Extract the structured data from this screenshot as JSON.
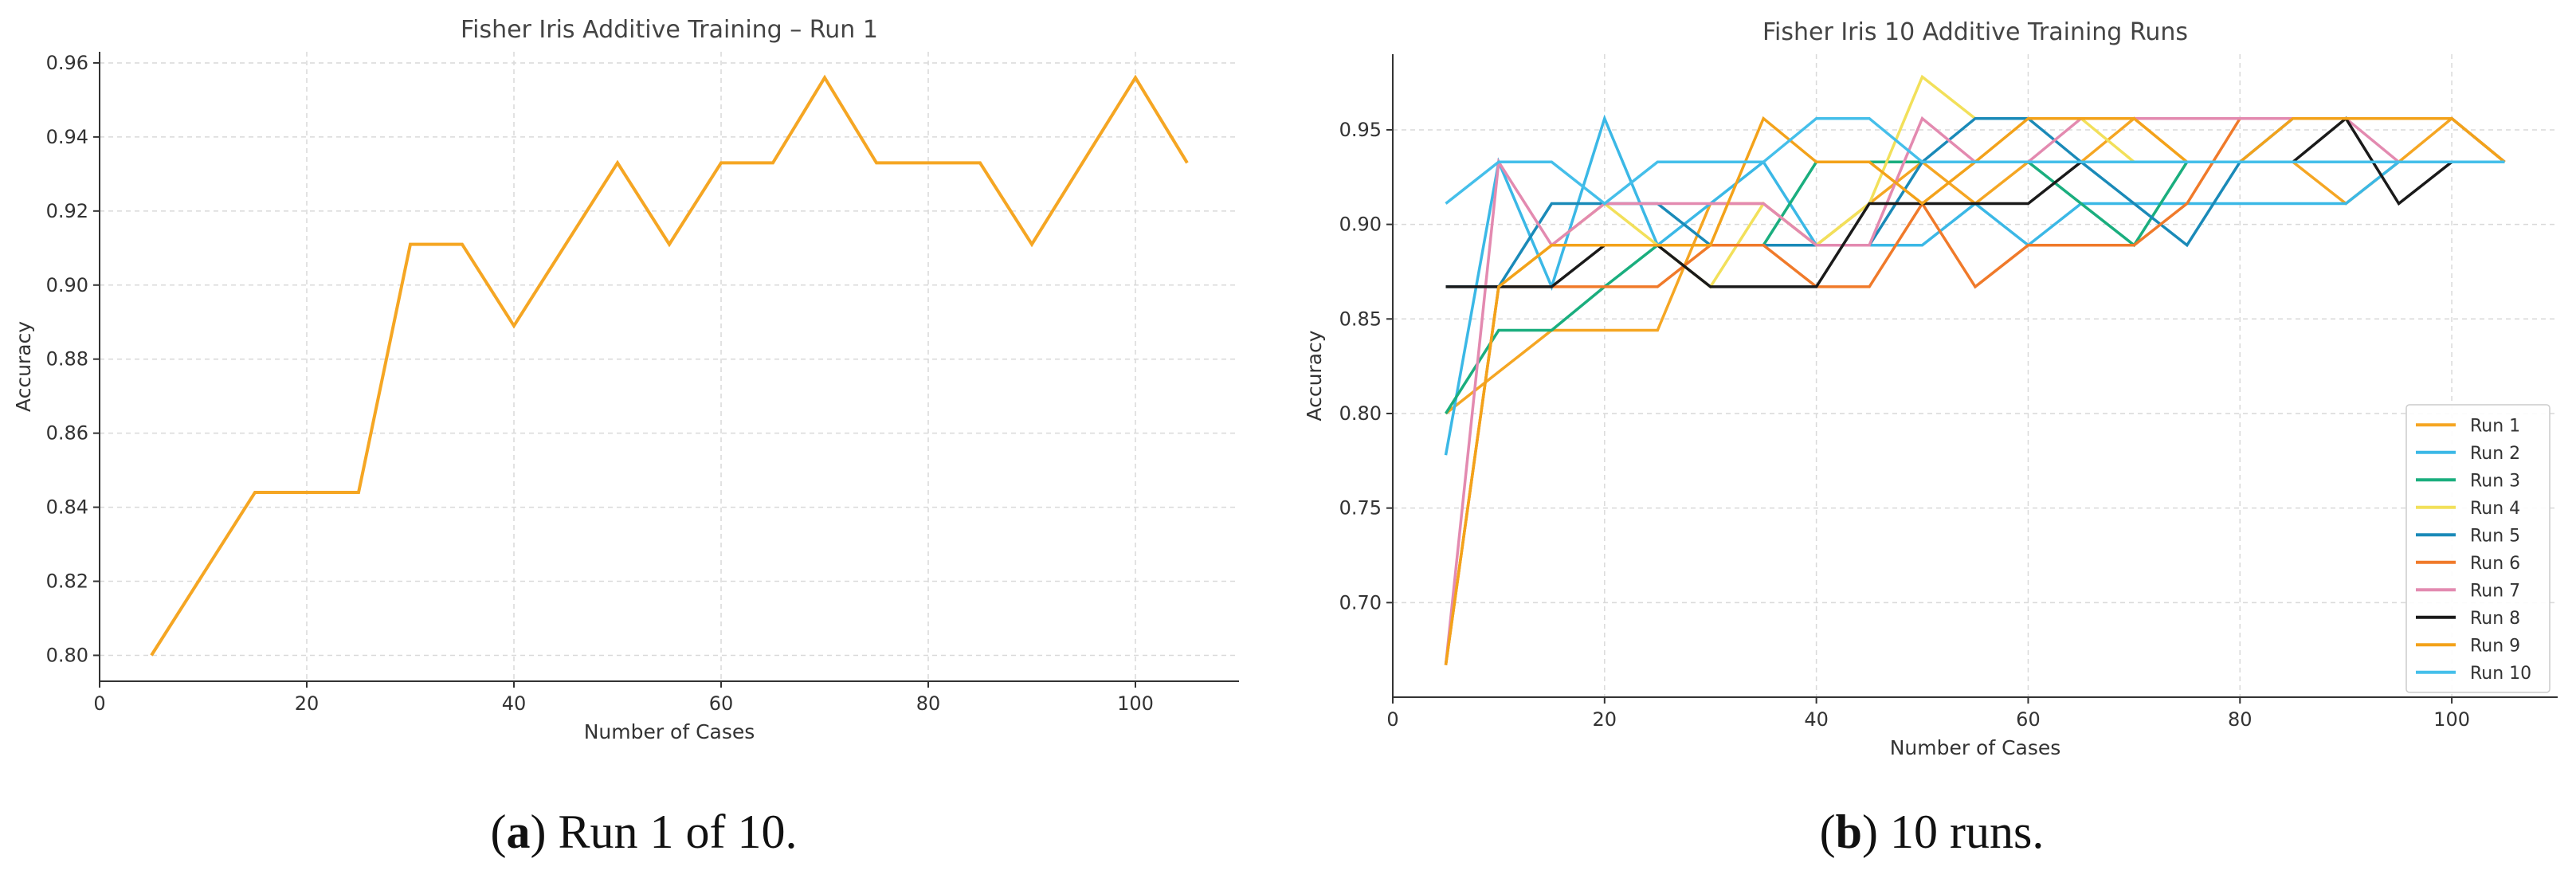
{
  "colors": {
    "run1": "#F5A623",
    "run2": "#3BB8E6",
    "run3": "#1AAE7E",
    "run4": "#F2E05A",
    "run5": "#1A8AB8",
    "run6": "#F07A2A",
    "run7": "#E38AB0",
    "run8": "#1A1A1A",
    "run9": "#F3A21A",
    "run10": "#45BFEA",
    "grid": "#d9d9d9",
    "axis": "#333333"
  },
  "captions": {
    "a_letter": "a",
    "a_text": "Run 1 of 10.",
    "b_letter": "b",
    "b_text": "10 runs."
  },
  "chart_data": [
    {
      "type": "line",
      "title": "Fisher Iris Additive Training – Run 1",
      "xlabel": "Number of Cases",
      "ylabel": "Accuracy",
      "xlim": [
        0,
        110
      ],
      "ylim": [
        0.793,
        0.963
      ],
      "xticks": [
        0,
        20,
        40,
        60,
        80,
        100
      ],
      "yticks": [
        0.8,
        0.82,
        0.84,
        0.86,
        0.88,
        0.9,
        0.92,
        0.94,
        0.96
      ],
      "grid": true,
      "series": [
        {
          "color": "#F5A623",
          "x": [
            5,
            15,
            25,
            30,
            35,
            40,
            50,
            55,
            60,
            65,
            70,
            75,
            80,
            85,
            90,
            100,
            105
          ],
          "y": [
            0.8,
            0.844,
            0.844,
            0.911,
            0.911,
            0.889,
            0.933,
            0.911,
            0.933,
            0.933,
            0.956,
            0.933,
            0.933,
            0.933,
            0.911,
            0.956,
            0.933
          ]
        }
      ]
    },
    {
      "type": "line",
      "title": "Fisher Iris 10 Additive Training Runs",
      "xlabel": "Number of Cases",
      "ylabel": "Accuracy",
      "xlim": [
        0,
        110
      ],
      "ylim": [
        0.65,
        0.99
      ],
      "xticks": [
        0,
        20,
        40,
        60,
        80,
        100
      ],
      "yticks": [
        0.7,
        0.75,
        0.8,
        0.85,
        0.9,
        0.95
      ],
      "grid": true,
      "legend": "bottom-right",
      "x": [
        5,
        10,
        15,
        20,
        25,
        30,
        35,
        40,
        45,
        50,
        55,
        60,
        65,
        70,
        75,
        80,
        85,
        90,
        95,
        100,
        105
      ],
      "series": [
        {
          "name": "Run 1",
          "color": "#F5A623",
          "values": [
            0.8,
            0.822,
            0.844,
            0.844,
            0.844,
            0.911,
            0.911,
            0.889,
            0.911,
            0.933,
            0.911,
            0.933,
            0.933,
            0.956,
            0.933,
            0.933,
            0.933,
            0.911,
            0.933,
            0.956,
            0.933
          ]
        },
        {
          "name": "Run 2",
          "color": "#3BB8E6",
          "values": [
            0.778,
            0.933,
            0.867,
            0.956,
            0.889,
            0.911,
            0.933,
            0.889,
            0.889,
            0.889,
            0.911,
            0.889,
            0.911,
            0.911,
            0.911,
            0.911,
            0.911,
            0.911,
            0.933,
            0.933,
            0.933
          ]
        },
        {
          "name": "Run 3",
          "color": "#1AAE7E",
          "values": [
            0.8,
            0.844,
            0.844,
            0.867,
            0.889,
            0.889,
            0.889,
            0.933,
            0.933,
            0.933,
            0.933,
            0.933,
            0.911,
            0.889,
            0.933,
            0.933,
            0.933,
            0.933,
            0.933,
            0.933,
            0.933
          ]
        },
        {
          "name": "Run 4",
          "color": "#F2E05A",
          "values": [
            0.667,
            0.867,
            0.889,
            0.911,
            0.889,
            0.867,
            0.911,
            0.889,
            0.911,
            0.978,
            0.956,
            0.956,
            0.956,
            0.933,
            0.933,
            0.933,
            0.933,
            0.933,
            0.933,
            0.933,
            0.933
          ]
        },
        {
          "name": "Run 5",
          "color": "#1A8AB8",
          "values": [
            0.867,
            0.867,
            0.911,
            0.911,
            0.911,
            0.889,
            0.889,
            0.889,
            0.889,
            0.933,
            0.956,
            0.956,
            0.933,
            0.911,
            0.889,
            0.933,
            0.956,
            0.956,
            0.956,
            0.956,
            0.933
          ]
        },
        {
          "name": "Run 6",
          "color": "#F07A2A",
          "values": [
            0.667,
            0.867,
            0.867,
            0.867,
            0.867,
            0.889,
            0.889,
            0.867,
            0.867,
            0.911,
            0.867,
            0.889,
            0.889,
            0.889,
            0.911,
            0.956,
            0.956,
            0.956,
            0.956,
            0.956,
            0.933
          ]
        },
        {
          "name": "Run 7",
          "color": "#E38AB0",
          "values": [
            0.667,
            0.933,
            0.889,
            0.911,
            0.911,
            0.911,
            0.911,
            0.889,
            0.889,
            0.956,
            0.933,
            0.933,
            0.956,
            0.956,
            0.956,
            0.956,
            0.956,
            0.956,
            0.933,
            0.933,
            0.933
          ]
        },
        {
          "name": "Run 8",
          "color": "#1A1A1A",
          "values": [
            0.867,
            0.867,
            0.867,
            0.889,
            0.889,
            0.867,
            0.867,
            0.867,
            0.911,
            0.911,
            0.911,
            0.911,
            0.933,
            0.933,
            0.933,
            0.933,
            0.933,
            0.956,
            0.911,
            0.933,
            0.933
          ]
        },
        {
          "name": "Run 9",
          "color": "#F3A21A",
          "values": [
            0.667,
            0.867,
            0.889,
            0.889,
            0.889,
            0.889,
            0.956,
            0.933,
            0.933,
            0.911,
            0.933,
            0.956,
            0.956,
            0.956,
            0.933,
            0.933,
            0.956,
            0.956,
            0.956,
            0.956,
            0.933
          ]
        },
        {
          "name": "Run 10",
          "color": "#45BFEA",
          "values": [
            0.911,
            0.933,
            0.933,
            0.911,
            0.933,
            0.933,
            0.933,
            0.956,
            0.956,
            0.933,
            0.933,
            0.933,
            0.933,
            0.933,
            0.933,
            0.933,
            0.933,
            0.933,
            0.933,
            0.933,
            0.933
          ]
        }
      ]
    }
  ]
}
